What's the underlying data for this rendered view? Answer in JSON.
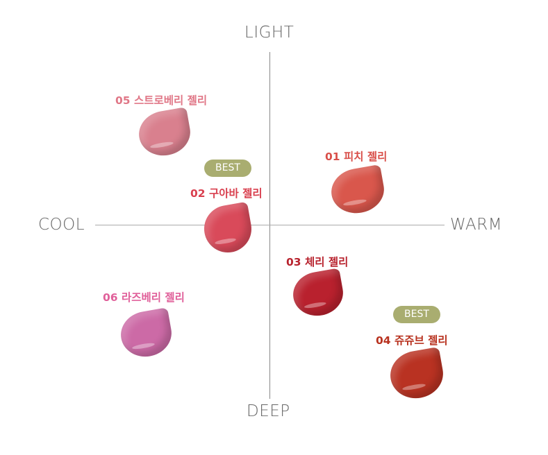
{
  "axes": {
    "top": "LIGHT",
    "bottom": "DEEP",
    "left": "COOL",
    "right": "WARM"
  },
  "badge_label": "BEST",
  "shades": [
    {
      "label": "01 피치 젤리",
      "color": "#d9574c",
      "label_color": "#d9504a",
      "best": false
    },
    {
      "label": "02 구아바 젤리",
      "color": "#d94a5a",
      "label_color": "#d9404f",
      "best": true
    },
    {
      "label": "03 체리 젤리",
      "color": "#b9212e",
      "label_color": "#b8232e",
      "best": false
    },
    {
      "label": "04 쥬쥬브 젤리",
      "color": "#b93222",
      "label_color": "#b8321f",
      "best": true
    },
    {
      "label": "05 스트로베리 젤리",
      "color": "#d9808e",
      "label_color": "#e07787",
      "best": false
    },
    {
      "label": "06 라즈베리 젤리",
      "color": "#cc6aa6",
      "label_color": "#e0609a",
      "best": false
    }
  ],
  "colors": {
    "badge": "#a9ad70",
    "axis": "#888888"
  }
}
